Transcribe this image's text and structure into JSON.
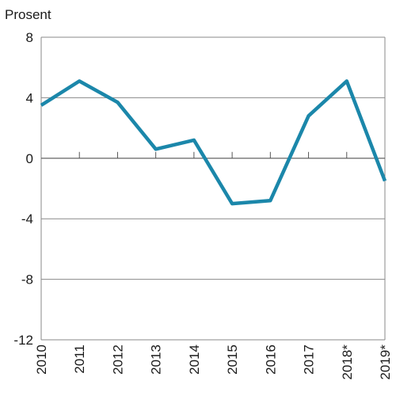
{
  "chart_data": {
    "type": "line",
    "title": "",
    "unit_label": "Prosent",
    "xlabel": "",
    "ylabel": "",
    "categories": [
      "2010",
      "2011",
      "2012",
      "2013",
      "2014",
      "2015",
      "2016",
      "2017",
      "2018*",
      "2019*"
    ],
    "series": [
      {
        "values": [
          3.5,
          5.1,
          3.7,
          0.6,
          1.2,
          -3.0,
          -2.8,
          2.8,
          5.1,
          -1.5
        ],
        "color": "#1b87aa"
      }
    ],
    "ylim": [
      -12,
      8
    ],
    "yticks": [
      {
        "value": 8,
        "label": "8"
      },
      {
        "value": 4,
        "label": "4"
      },
      {
        "value": 0,
        "label": "0"
      },
      {
        "value": -4,
        "label": "-4"
      },
      {
        "value": -8,
        "label": "-8"
      },
      {
        "value": -12,
        "label": "-12"
      }
    ],
    "grid": "horizontal",
    "legend": "none"
  }
}
